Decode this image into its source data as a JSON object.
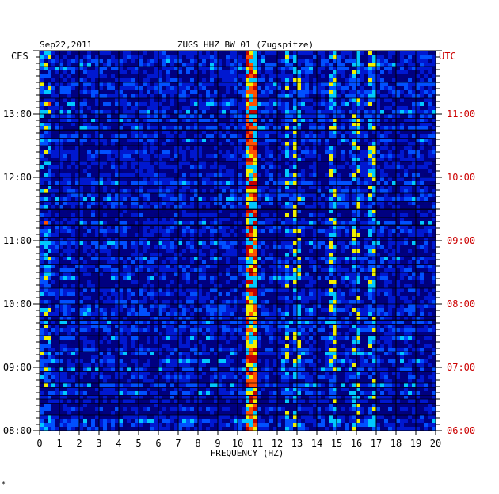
{
  "chart_data": {
    "type": "heatmap",
    "title_date": "Sep22,2011",
    "title_station": "ZUGS HHZ BW 01 (Zugspitze)",
    "left_timezone": "CES",
    "right_timezone": "UTC",
    "xlabel": "FREQUENCY (HZ)",
    "xlim": [
      0,
      20
    ],
    "x_ticks": [
      "0",
      "1",
      "2",
      "3",
      "4",
      "5",
      "6",
      "7",
      "8",
      "9",
      "10",
      "11",
      "12",
      "13",
      "14",
      "15",
      "16",
      "17",
      "18",
      "19",
      "20"
    ],
    "time_range_hours_cest": [
      8.0,
      14.0
    ],
    "left_ticks": [
      {
        "hour": 13,
        "label": "13:00"
      },
      {
        "hour": 12,
        "label": "12:00"
      },
      {
        "hour": 11,
        "label": "11:00"
      },
      {
        "hour": 10,
        "label": "10:00"
      },
      {
        "hour": 9,
        "label": "09:00"
      },
      {
        "hour": 8,
        "label": "08:00"
      }
    ],
    "right_ticks": [
      {
        "hour": 13,
        "label": "11:00"
      },
      {
        "hour": 12,
        "label": "10:00"
      },
      {
        "hour": 11,
        "label": "09:00"
      },
      {
        "hour": 10,
        "label": "08:00"
      },
      {
        "hour": 9,
        "label": "07:00"
      },
      {
        "hour": 8,
        "label": "06:00"
      }
    ],
    "dominant_frequency_band_hz": [
      10.4,
      11.0
    ],
    "secondary_bands_hz": [
      12.5,
      13.0,
      14.8,
      16.0,
      16.8
    ],
    "colormap": [
      "#00007a",
      "#0018d0",
      "#0050ff",
      "#00c8ff",
      "#f0f000",
      "#ff5000",
      "#c00000"
    ],
    "grid": true
  },
  "footer_mark": "*",
  "colors": {
    "left_axis_text": "#000000",
    "right_axis_text": "#cc0000",
    "background_fill": "#000088"
  }
}
